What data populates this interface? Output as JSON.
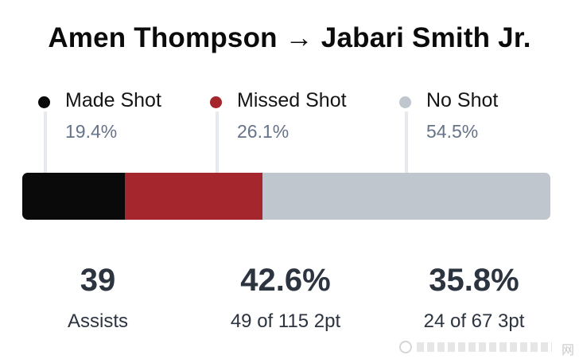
{
  "title": "Amen Thompson → Jabari Smith Jr.",
  "chart_data": {
    "type": "bar",
    "orientation": "horizontal-stacked-100",
    "categories": [
      "Made Shot",
      "Missed Shot",
      "No Shot"
    ],
    "values": [
      19.4,
      26.1,
      54.5
    ],
    "value_labels": [
      "19.4%",
      "26.1%",
      "54.5%"
    ],
    "colors": [
      "#0a0a0a",
      "#a5262d",
      "#c0c6cd"
    ],
    "unit": "%",
    "legend": "top"
  },
  "legend": [
    {
      "label": "Made Shot",
      "pct": "19.4%",
      "color": "#0a0a0a"
    },
    {
      "label": "Missed Shot",
      "pct": "26.1%",
      "color": "#a5262d"
    },
    {
      "label": "No Shot",
      "pct": "54.5%",
      "color": "#c0c6cd"
    }
  ],
  "stats": [
    {
      "value": "39",
      "label": "Assists"
    },
    {
      "value": "42.6%",
      "label": "49 of 115 2pt"
    },
    {
      "value": "35.8%",
      "label": "24 of 67 3pt"
    }
  ]
}
